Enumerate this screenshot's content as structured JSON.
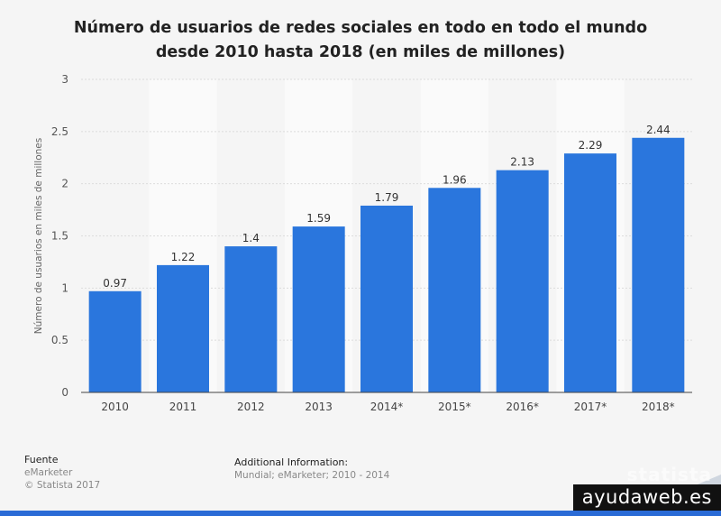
{
  "chart_data": {
    "type": "bar",
    "title_lines": [
      "Número de usuarios de redes sociales en todo en todo el mundo",
      "desde 2010 hasta 2018 (en miles de millones)"
    ],
    "categories": [
      "2010",
      "2011",
      "2012",
      "2013",
      "2014*",
      "2015*",
      "2016*",
      "2017*",
      "2018*"
    ],
    "values": [
      0.97,
      1.22,
      1.4,
      1.59,
      1.79,
      1.96,
      2.13,
      2.29,
      2.44
    ],
    "value_labels": [
      "0.97",
      "1.22",
      "1.4",
      "1.59",
      "1.79",
      "1.96",
      "2.13",
      "2.29",
      "2.44"
    ],
    "ylabel": "Número de usuarios en miles de millones",
    "xlabel": "",
    "ylim": [
      0,
      3
    ],
    "yticks": [
      "0",
      "0.5",
      "1",
      "1.5",
      "2",
      "2.5",
      "3"
    ],
    "ytick_values": [
      0,
      0.5,
      1,
      1.5,
      2,
      2.5,
      3
    ],
    "bar_color": "#2a76dd",
    "grid": true
  },
  "footer": {
    "source_heading": "Fuente",
    "source_name": "eMarketer",
    "copyright": "© Statista 2017",
    "additional_heading": "Additional Information:",
    "additional_text": "Mundial; eMarketer; 2010 - 2014"
  },
  "brand": "statista",
  "watermark": "ayudaweb.es"
}
